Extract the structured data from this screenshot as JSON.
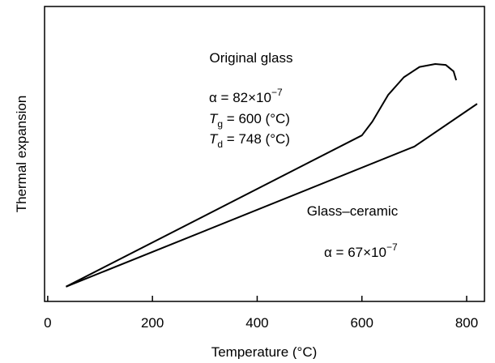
{
  "chart_data": {
    "type": "line",
    "xlabel": "Temperature (°C)",
    "ylabel": "Thermal expansion",
    "xlim": [
      -6,
      834
    ],
    "xticks": [
      0,
      200,
      400,
      600,
      800
    ],
    "ylim": [
      0,
      100
    ],
    "series": [
      {
        "name": "Original glass",
        "color": "#000000",
        "x": [
          35,
          600,
          620,
          650,
          680,
          710,
          740,
          760,
          775,
          780
        ],
        "values": [
          5,
          56.3,
          61,
          70,
          76,
          79.5,
          80.5,
          80.2,
          78,
          75
        ]
      },
      {
        "name": "Glass–ceramic",
        "color": "#000000",
        "x": [
          35,
          700,
          820
        ],
        "values": [
          5,
          52.5,
          67
        ]
      }
    ],
    "annotations": [
      {
        "base": "α = 82×10",
        "sup": "−7"
      },
      {
        "italic": "T",
        "sub": "g",
        "rest": " = 600 (°C)"
      },
      {
        "italic": "T",
        "sub": "d",
        "rest": " = 748 (°C)"
      },
      {
        "base": "α = 67×10",
        "sup": "−7"
      }
    ]
  }
}
